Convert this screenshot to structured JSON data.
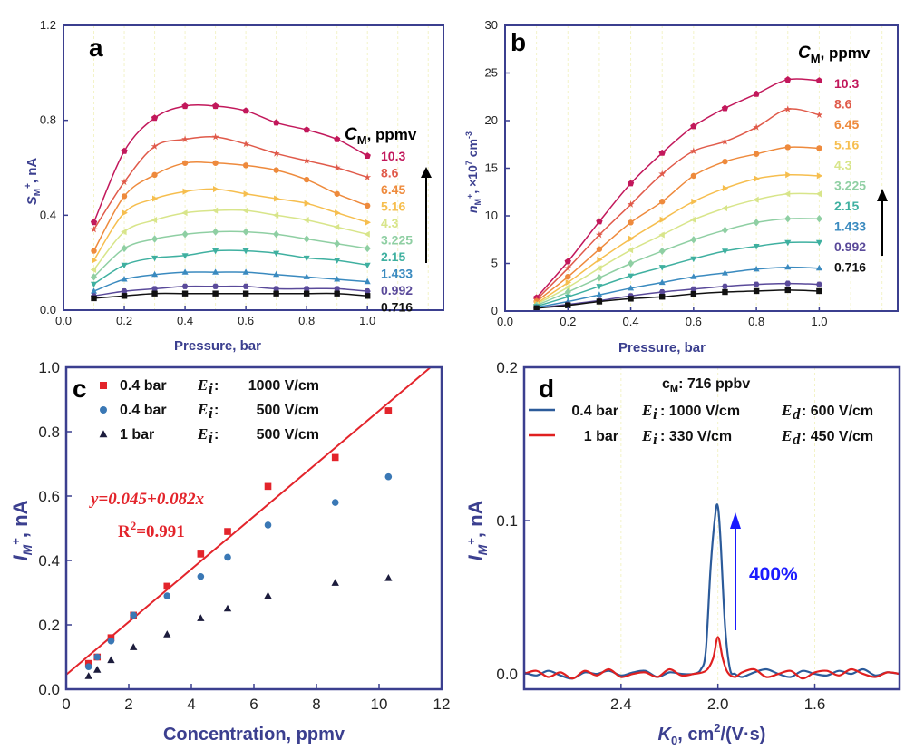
{
  "colors": {
    "axis": "#3b3f8f",
    "grid": "#f3f3c8",
    "series_ab": [
      "#c2185b",
      "#e05a4a",
      "#ee8a3c",
      "#f6be4e",
      "#d8e58a",
      "#8fcfa3",
      "#3fb0a0",
      "#3a8abf",
      "#5a4a9a",
      "#111111"
    ],
    "c_red": "#e3242b",
    "c_blue": "#3a78b5",
    "c_black": "#1c1c3c",
    "d_blue": "#2c5b9a",
    "d_red": "#e02020",
    "arrow_blue": "#1a1aff"
  },
  "panels": {
    "a": {
      "label": "a",
      "cm_sym": "C",
      "cm_sub": "M",
      "cm_unit": ", ppmv",
      "ylabel_main": "S",
      "ylabel_sub": "M",
      "ylabel_sup": "+",
      "ylabel_unit": ", nA",
      "xlabel": "Pressure, bar"
    },
    "b": {
      "label": "b",
      "cm_sym": "C",
      "cm_sub": "M",
      "cm_unit": ", ppmv",
      "ylabel_main": "n",
      "ylabel_sub": "M",
      "ylabel_sup": "+",
      "ylabel_unit": ", ×10",
      "ylabel_exp": "7",
      "ylabel_unit2": " cm",
      "ylabel_exp2": "-3",
      "xlabel": "Pressure, bar"
    },
    "c": {
      "label": "c",
      "ylabel_main": "I",
      "ylabel_sub": "M",
      "ylabel_sup": "+",
      "ylabel_unit": ", nA",
      "xlabel": "Concentration, ppmv",
      "equation": "y=0.045+0.082x",
      "r2_main": "R",
      "r2_exp": "2",
      "r2_val": "=0.991",
      "legend": [
        {
          "pressure": "0.4 bar",
          "field": "E",
          "field_sub": "i",
          "sep": " :",
          "value": "1000 V/cm"
        },
        {
          "pressure": "0.4 bar",
          "field": "E",
          "field_sub": "i",
          "sep": " :",
          "value": "500 V/cm"
        },
        {
          "pressure": "1 bar",
          "field": "E",
          "field_sub": "i",
          "sep": " :",
          "value": "500 V/cm"
        }
      ]
    },
    "d": {
      "label": "d",
      "ylabel_main": "I",
      "ylabel_sub": "M",
      "ylabel_sup": "+",
      "ylabel_unit": ", nA",
      "xlabel_main": "K",
      "xlabel_sub": "0",
      "xlabel_unit": ", cm",
      "xlabel_exp": "2",
      "xlabel_unit2": "/(V·s)",
      "title_main": "c",
      "title_sub": "M",
      "title_rest": ": 716 ppbv",
      "annotation": "400%",
      "legend": [
        {
          "pressure": "0.4 bar",
          "ei": "E",
          "ei_sub": "i",
          "ei_val": ": 1000 V/cm",
          "ed": "E",
          "ed_sub": "d",
          "ed_val": ": 600 V/cm"
        },
        {
          "pressure": "1 bar",
          "ei": "E",
          "ei_sub": "i",
          "ei_val": ":   330 V/cm",
          "ed": "E",
          "ed_sub": "d",
          "ed_val": ": 450 V/cm"
        }
      ]
    }
  },
  "chart_data": [
    {
      "panel": "a",
      "type": "scatter",
      "xlabel": "Pressure, bar",
      "ylabel": "SM+, nA",
      "xlim": [
        0,
        1.25
      ],
      "ylim": [
        0,
        1.2
      ],
      "xticks": [
        "0.0",
        "0.2",
        "0.4",
        "0.6",
        "0.8",
        "1.0"
      ],
      "yticks": [
        "0.0",
        "0.4",
        "0.8",
        "1.2"
      ],
      "x": [
        0.1,
        0.2,
        0.3,
        0.4,
        0.5,
        0.6,
        0.7,
        0.8,
        0.9,
        1.0
      ],
      "series": [
        {
          "name": "10.3",
          "values": [
            0.37,
            0.67,
            0.81,
            0.86,
            0.86,
            0.84,
            0.79,
            0.76,
            0.72,
            0.65
          ]
        },
        {
          "name": "8.6",
          "values": [
            0.34,
            0.54,
            0.69,
            0.72,
            0.73,
            0.7,
            0.66,
            0.63,
            0.6,
            0.56
          ]
        },
        {
          "name": "6.45",
          "values": [
            0.25,
            0.48,
            0.57,
            0.62,
            0.62,
            0.61,
            0.59,
            0.55,
            0.49,
            0.44
          ]
        },
        {
          "name": "5.16",
          "values": [
            0.21,
            0.41,
            0.47,
            0.5,
            0.51,
            0.49,
            0.47,
            0.45,
            0.41,
            0.37
          ]
        },
        {
          "name": "4.3",
          "values": [
            0.17,
            0.33,
            0.38,
            0.41,
            0.42,
            0.42,
            0.4,
            0.38,
            0.35,
            0.32
          ]
        },
        {
          "name": "3.225",
          "values": [
            0.14,
            0.26,
            0.3,
            0.32,
            0.33,
            0.33,
            0.32,
            0.3,
            0.28,
            0.26
          ]
        },
        {
          "name": "2.15",
          "values": [
            0.11,
            0.19,
            0.22,
            0.23,
            0.25,
            0.25,
            0.24,
            0.22,
            0.21,
            0.19
          ]
        },
        {
          "name": "1.433",
          "values": [
            0.08,
            0.13,
            0.15,
            0.16,
            0.16,
            0.16,
            0.15,
            0.14,
            0.13,
            0.12
          ]
        },
        {
          "name": "0.992",
          "values": [
            0.06,
            0.08,
            0.09,
            0.1,
            0.1,
            0.1,
            0.09,
            0.09,
            0.09,
            0.08
          ]
        },
        {
          "name": "0.716",
          "values": [
            0.05,
            0.06,
            0.07,
            0.07,
            0.07,
            0.07,
            0.07,
            0.07,
            0.07,
            0.06
          ]
        }
      ]
    },
    {
      "panel": "b",
      "type": "scatter",
      "xlabel": "Pressure, bar",
      "ylabel": "nM+, ×10^7 cm^-3",
      "xlim": [
        0,
        1.25
      ],
      "ylim": [
        0,
        30
      ],
      "xticks": [
        "0.0",
        "0.2",
        "0.4",
        "0.6",
        "0.8",
        "1.0"
      ],
      "yticks": [
        "0",
        "5",
        "10",
        "15",
        "20",
        "25",
        "30"
      ],
      "x": [
        0.1,
        0.2,
        0.3,
        0.4,
        0.5,
        0.6,
        0.7,
        0.8,
        0.9,
        1.0
      ],
      "series": [
        {
          "name": "10.3",
          "values": [
            1.4,
            5.2,
            9.4,
            13.4,
            16.6,
            19.4,
            21.3,
            22.8,
            24.3,
            24.2
          ]
        },
        {
          "name": "8.6",
          "values": [
            1.2,
            4.5,
            8.0,
            11.2,
            14.4,
            16.8,
            17.8,
            19.3,
            21.2,
            20.6
          ]
        },
        {
          "name": "6.45",
          "values": [
            1.0,
            3.6,
            6.5,
            9.3,
            11.5,
            14.2,
            15.7,
            16.5,
            17.2,
            17.1
          ]
        },
        {
          "name": "5.16",
          "values": [
            0.8,
            3.0,
            5.4,
            7.6,
            9.6,
            11.5,
            12.9,
            13.9,
            14.3,
            14.2
          ]
        },
        {
          "name": "4.3",
          "values": [
            0.7,
            2.5,
            4.5,
            6.4,
            8.0,
            9.6,
            10.8,
            11.7,
            12.3,
            12.3
          ]
        },
        {
          "name": "3.225",
          "values": [
            0.6,
            2.0,
            3.5,
            5.0,
            6.3,
            7.5,
            8.5,
            9.3,
            9.7,
            9.7
          ]
        },
        {
          "name": "2.15",
          "values": [
            0.5,
            1.5,
            2.6,
            3.7,
            4.6,
            5.5,
            6.3,
            6.8,
            7.2,
            7.2
          ]
        },
        {
          "name": "1.433",
          "values": [
            0.4,
            1.0,
            1.7,
            2.4,
            3.0,
            3.6,
            4.0,
            4.4,
            4.6,
            4.5
          ]
        },
        {
          "name": "0.992",
          "values": [
            0.3,
            0.7,
            1.1,
            1.6,
            2.0,
            2.3,
            2.6,
            2.8,
            2.9,
            2.8
          ]
        },
        {
          "name": "0.716",
          "values": [
            0.3,
            0.6,
            1.0,
            1.3,
            1.5,
            1.8,
            2.0,
            2.1,
            2.2,
            2.1
          ]
        }
      ]
    },
    {
      "panel": "c",
      "type": "scatter",
      "xlabel": "Concentration, ppmv",
      "ylabel": "IM+, nA",
      "xlim": [
        0,
        12
      ],
      "ylim": [
        0,
        1.0
      ],
      "xticks": [
        "0",
        "2",
        "4",
        "6",
        "8",
        "10",
        "12"
      ],
      "yticks": [
        "0.0",
        "0.2",
        "0.4",
        "0.6",
        "0.8",
        "1.0"
      ],
      "x": [
        0.716,
        0.992,
        1.433,
        2.15,
        3.225,
        4.3,
        5.16,
        6.45,
        8.6,
        10.3
      ],
      "series": [
        {
          "name": "0.4 bar Ei 1000 V/cm",
          "marker": "square",
          "values": [
            0.08,
            0.1,
            0.16,
            0.23,
            0.32,
            0.42,
            0.49,
            0.63,
            0.72,
            0.865
          ]
        },
        {
          "name": "0.4 bar Ei 500 V/cm",
          "marker": "circle",
          "values": [
            0.07,
            0.1,
            0.15,
            0.23,
            0.29,
            0.35,
            0.41,
            0.51,
            0.58,
            0.66
          ]
        },
        {
          "name": "1 bar Ei 500 V/cm",
          "marker": "triangle",
          "values": [
            0.04,
            0.06,
            0.09,
            0.13,
            0.17,
            0.22,
            0.25,
            0.29,
            0.33,
            0.345
          ]
        }
      ],
      "fit": {
        "intercept": 0.045,
        "slope": 0.082,
        "r2": 0.991
      }
    },
    {
      "panel": "d",
      "type": "line",
      "xlabel": "K0, cm2/(V·s)",
      "ylabel": "IM+, nA",
      "xlim": [
        2.8,
        1.25
      ],
      "ylim": [
        -0.01,
        0.2
      ],
      "xticks": [
        "2.4",
        "2.0",
        "1.6"
      ],
      "yticks": [
        "0.0",
        "0.1",
        "0.2"
      ],
      "title": "cM: 716 ppbv",
      "series": [
        {
          "name": "0.4 bar Ei 1000 V/cm Ed 600 V/cm",
          "x": [
            2.8,
            2.75,
            2.7,
            2.65,
            2.6,
            2.55,
            2.5,
            2.45,
            2.4,
            2.35,
            2.3,
            2.25,
            2.2,
            2.15,
            2.1,
            2.07,
            2.05,
            2.03,
            2.01,
            2.0,
            1.99,
            1.97,
            1.95,
            1.93,
            1.9,
            1.85,
            1.8,
            1.75,
            1.7,
            1.65,
            1.6,
            1.55,
            1.5,
            1.45,
            1.4,
            1.35,
            1.3,
            1.25
          ],
          "values": [
            0.001,
            -0.001,
            0.002,
            -0.001,
            -0.003,
            0.001,
            0.0,
            0.002,
            -0.001,
            0.001,
            0.002,
            -0.002,
            0.001,
            0.0,
            0.0,
            0.003,
            0.015,
            0.07,
            0.105,
            0.109,
            0.09,
            0.03,
            0.003,
            0.0,
            -0.002,
            0.001,
            0.003,
            0.0,
            -0.002,
            0.002,
            0.0,
            -0.001,
            0.002,
            0.0,
            0.003,
            -0.001,
            0.001,
            0.0
          ]
        },
        {
          "name": "1 bar Ei 330 V/cm Ed 450 V/cm",
          "x": [
            2.8,
            2.75,
            2.7,
            2.65,
            2.6,
            2.55,
            2.5,
            2.45,
            2.4,
            2.35,
            2.3,
            2.25,
            2.2,
            2.15,
            2.1,
            2.05,
            2.02,
            2.0,
            1.98,
            1.96,
            1.93,
            1.9,
            1.85,
            1.8,
            1.75,
            1.7,
            1.65,
            1.6,
            1.55,
            1.5,
            1.45,
            1.4,
            1.35,
            1.3,
            1.25
          ],
          "values": [
            0.0,
            0.002,
            -0.002,
            0.001,
            -0.003,
            0.002,
            -0.001,
            0.003,
            -0.002,
            0.0,
            0.001,
            -0.002,
            0.003,
            -0.001,
            0.0,
            0.002,
            0.01,
            0.024,
            0.01,
            0.001,
            -0.002,
            0.001,
            0.003,
            -0.002,
            0.0,
            0.002,
            -0.003,
            0.001,
            0.002,
            -0.001,
            0.003,
            0.0,
            -0.002,
            0.001,
            0.0
          ]
        }
      ]
    }
  ]
}
